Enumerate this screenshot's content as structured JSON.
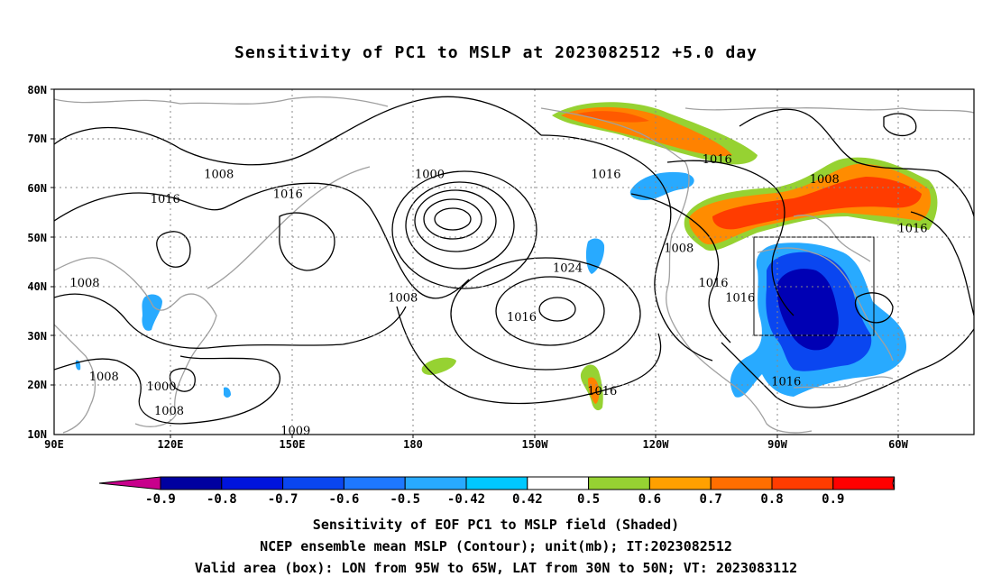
{
  "title": "Sensitivity of PC1 to MSLP at 2023082512 +5.0 day",
  "lat_labels": [
    "80N",
    "70N",
    "60N",
    "50N",
    "40N",
    "30N",
    "20N",
    "10N"
  ],
  "lon_labels": [
    "90E",
    "120E",
    "150E",
    "180",
    "150W",
    "120W",
    "90W",
    "60W"
  ],
  "contour_labels": [
    {
      "text": "1008",
      "lon": 120,
      "lat": 14
    },
    {
      "text": "1016",
      "lon": 119,
      "lat": 57
    },
    {
      "text": "1008",
      "lon": 133,
      "lat": 62
    },
    {
      "text": "1016",
      "lon": 151,
      "lat": 58
    },
    {
      "text": "1000",
      "lon": 118,
      "lat": 19
    },
    {
      "text": "1008",
      "lon": 98,
      "lat": 40
    },
    {
      "text": "1008",
      "lon": 103,
      "lat": 21
    },
    {
      "text": "1009",
      "lon": 153,
      "lat": 10
    },
    {
      "text": "1000",
      "lon": 188,
      "lat": 62
    },
    {
      "text": "1008",
      "lon": 181,
      "lat": 37
    },
    {
      "text": "1016",
      "lon": 234,
      "lat": 62
    },
    {
      "text": "1024",
      "lon": 224,
      "lat": 43
    },
    {
      "text": "1016",
      "lon": 212,
      "lat": 33
    },
    {
      "text": "1016",
      "lon": 233,
      "lat": 18
    },
    {
      "text": "1016",
      "lon": 263,
      "lat": 65
    },
    {
      "text": "1008",
      "lon": 253,
      "lat": 47
    },
    {
      "text": "1016",
      "lon": 262,
      "lat": 40
    },
    {
      "text": "1016",
      "lon": 269,
      "lat": 37
    },
    {
      "text": "1008",
      "lon": 291,
      "lat": 61
    },
    {
      "text": "1016",
      "lon": 314,
      "lat": 51
    },
    {
      "text": "1016",
      "lon": 281,
      "lat": 20
    }
  ],
  "colorbar": {
    "labels": [
      "-0.9",
      "-0.8",
      "-0.7",
      "-0.6",
      "-0.5",
      "-0.42",
      "0.42",
      "0.5",
      "0.6",
      "0.7",
      "0.8",
      "0.9"
    ],
    "colors": [
      "#0000a0",
      "#0014dc",
      "#0a46f0",
      "#1e78ff",
      "#28aaff",
      "#00c8ff",
      "#ffffff",
      "#96d232",
      "#ffa000",
      "#ff6e00",
      "#ff3c00",
      "#ff0000",
      "#ff96c8"
    ],
    "low_end_color": "#c8008c"
  },
  "valid_box": {
    "lon_min": -95,
    "lon_max": -65,
    "lat_min": 30,
    "lat_max": 50
  },
  "caption": {
    "line1": "Sensitivity of EOF PC1 to MSLP field (Shaded)",
    "line2": "NCEP ensemble mean MSLP (Contour); unit(mb); IT:2023082512",
    "line3": "Valid area (box): LON from 95W to 65W, LAT from 30N to 50N; VT: 2023083112"
  }
}
